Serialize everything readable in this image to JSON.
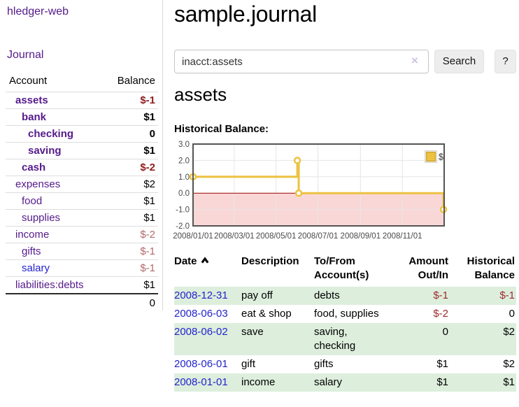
{
  "app": {
    "title": "hledger-web"
  },
  "sidebar": {
    "journal_link": "Journal",
    "accounts_table": {
      "headers": {
        "account": "Account",
        "balance": "Balance"
      },
      "rows": [
        {
          "name": "assets",
          "balance": "$-1",
          "level": 1,
          "bold": true,
          "unvisited": false
        },
        {
          "name": "bank",
          "balance": "$1",
          "level": 2,
          "bold": true,
          "unvisited": false
        },
        {
          "name": "checking",
          "balance": "0",
          "level": 3,
          "bold": true,
          "unvisited": false
        },
        {
          "name": "saving",
          "balance": "$1",
          "level": 3,
          "bold": true,
          "unvisited": false
        },
        {
          "name": "cash",
          "balance": "$-2",
          "level": 2,
          "bold": true,
          "unvisited": false
        },
        {
          "name": "expenses",
          "balance": "$2",
          "level": 1,
          "bold": false,
          "unvisited": false
        },
        {
          "name": "food",
          "balance": "$1",
          "level": 2,
          "bold": false,
          "unvisited": false
        },
        {
          "name": "supplies",
          "balance": "$1",
          "level": 2,
          "bold": false,
          "unvisited": false
        },
        {
          "name": "income",
          "balance": "$-2",
          "level": 1,
          "bold": false,
          "unvisited": false
        },
        {
          "name": "gifts",
          "balance": "$-1",
          "level": 2,
          "bold": false,
          "unvisited": false
        },
        {
          "name": "salary",
          "balance": "$-1",
          "level": 2,
          "bold": false,
          "unvisited": true
        },
        {
          "name": "liabilities:debts",
          "balance": "$1",
          "level": 1,
          "bold": false,
          "unvisited": false
        }
      ],
      "total": "0"
    }
  },
  "header": {
    "title": "sample.journal"
  },
  "search": {
    "value": "inacct:assets",
    "clear_icon": "×",
    "button_label": "Search",
    "help_label": "?"
  },
  "account_page": {
    "heading": "assets",
    "chart_label": "Historical Balance:"
  },
  "chart_data": {
    "type": "line",
    "style": "step",
    "title": "Historical Balance",
    "series": [
      {
        "name": "$",
        "color": "#EDC240",
        "points": [
          [
            "2008-01-01",
            1
          ],
          [
            "2008-06-01",
            2
          ],
          [
            "2008-06-03",
            0
          ],
          [
            "2008-12-31",
            -1
          ]
        ]
      }
    ],
    "x_range": [
      "2008-01-01",
      "2009-01-01"
    ],
    "x_ticks": [
      {
        "date": "2008-01-01",
        "label": "2008/01/01"
      },
      {
        "date": "2008-03-01",
        "label": "2008/03/01"
      },
      {
        "date": "2008-05-01",
        "label": "2008/05/01"
      },
      {
        "date": "2008-07-01",
        "label": "2008/07/01"
      },
      {
        "date": "2008-09-01",
        "label": "2008/09/01"
      },
      {
        "date": "2008-11-01",
        "label": "2008/11/01"
      }
    ],
    "y_ticks": [
      3.0,
      2.0,
      1.0,
      0.0,
      -1.0,
      -2.0
    ],
    "ylim": [
      -2,
      3
    ],
    "grid": true,
    "legend_position": "top-right",
    "legend_label": "$",
    "negative_fill": "#fad7d7",
    "zero_line_color": "#9a0000",
    "gridline_color": "#e6e6e6",
    "border_color": "#545454",
    "tick_text_color": "#4a4a4a"
  },
  "register_table": {
    "headers": [
      {
        "label": "Date",
        "sorted": "asc"
      },
      {
        "label": "Description"
      },
      {
        "label": "To/From Account(s)"
      },
      {
        "label": "Amount Out/In"
      },
      {
        "label": "Historical Balance"
      }
    ],
    "rows": [
      {
        "date": "2008-12-31",
        "description": "pay off",
        "accounts": "debts",
        "amount": "$-1",
        "balance": "$-1"
      },
      {
        "date": "2008-06-03",
        "description": "eat & shop",
        "accounts": "food, supplies",
        "amount": "$-2",
        "balance": "0"
      },
      {
        "date": "2008-06-02",
        "description": "save",
        "accounts": "saving, checking",
        "amount": "0",
        "balance": "$2"
      },
      {
        "date": "2008-06-01",
        "description": "gift",
        "accounts": "gifts",
        "amount": "$1",
        "balance": "$2"
      },
      {
        "date": "2008-01-01",
        "description": "income",
        "accounts": "salary",
        "amount": "$1",
        "balance": "$1"
      }
    ]
  },
  "colors": {
    "link_purple": "#551a8b",
    "link_blue": "#2323cc",
    "negative_bold": "#8f1d1d",
    "negative_soft": "#b26a6a",
    "negative_table": "#9c2b2b",
    "row_stripe_green": "#ddeedd",
    "series_yellow": "#EDC240"
  }
}
